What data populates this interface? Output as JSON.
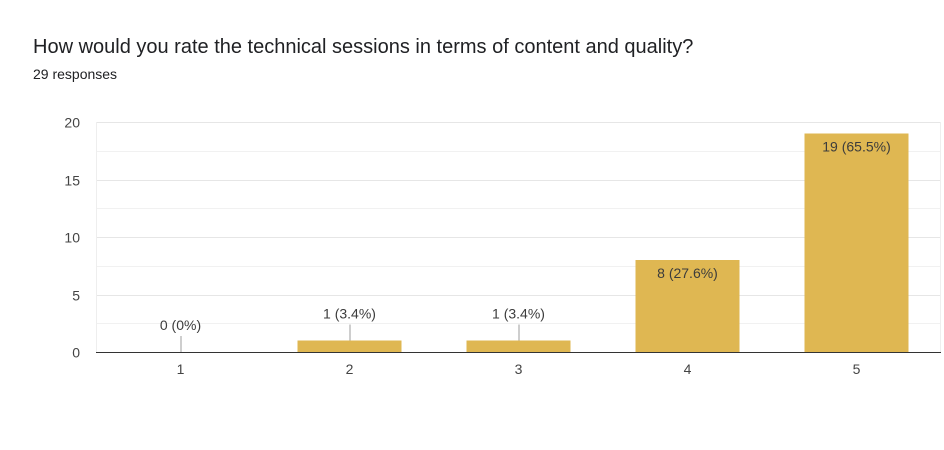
{
  "question": {
    "title": "How would you rate the technical sessions in terms of content and quality?",
    "response_count": "29 responses"
  },
  "colors": {
    "bar": "#dfb752",
    "grid": "#e6e6e6",
    "axis": "#333333",
    "leader": "#9e9e9e"
  },
  "chart_data": {
    "type": "bar",
    "categories": [
      "1",
      "2",
      "3",
      "4",
      "5"
    ],
    "values": [
      0,
      1,
      1,
      8,
      19
    ],
    "data_labels": [
      "0 (0%)",
      "1 (3.4%)",
      "1 (3.4%)",
      "8 (27.6%)",
      "19 (65.5%)"
    ],
    "y_ticks": [
      0,
      5,
      10,
      15,
      20
    ],
    "ylim": [
      0,
      20
    ],
    "grid": true,
    "xlabel": "",
    "ylabel": ""
  }
}
